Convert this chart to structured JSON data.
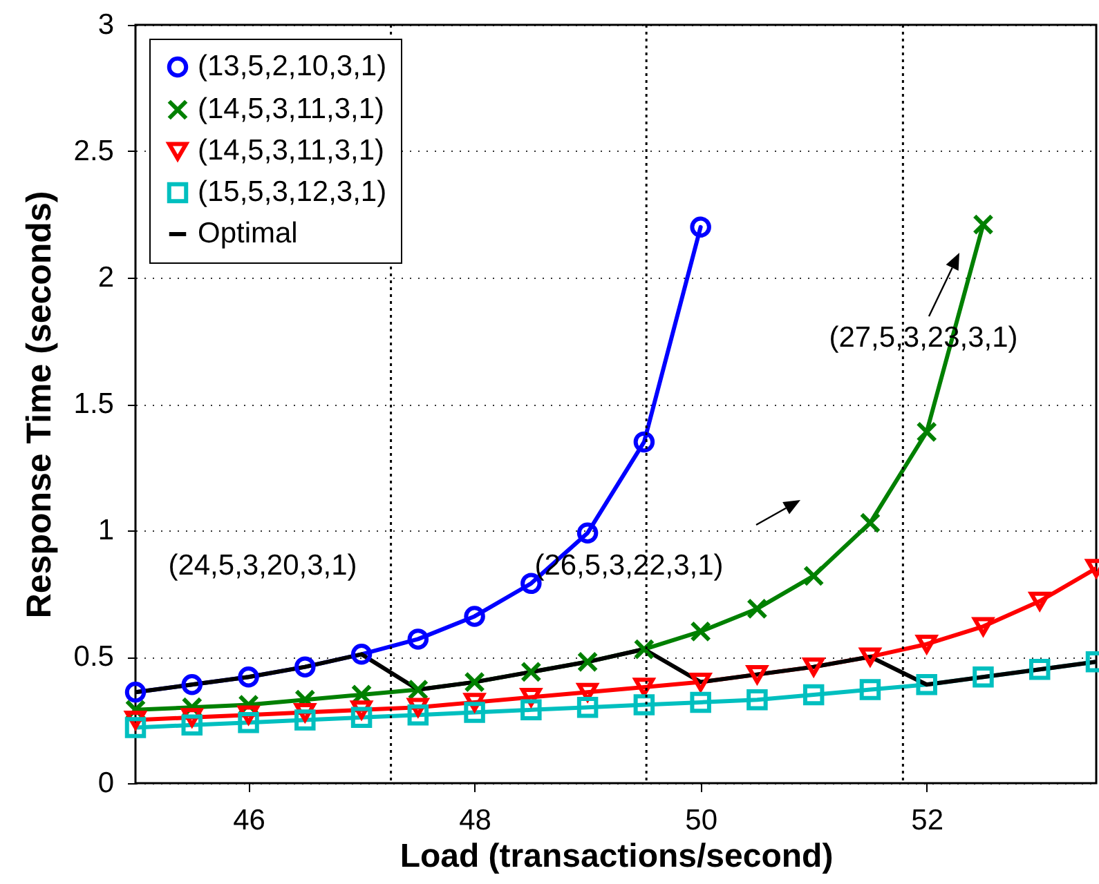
{
  "chart_data": {
    "type": "line",
    "xlabel": "Load (transactions/second)",
    "ylabel": "Response Time (seconds)",
    "xlim": [
      45,
      53.5
    ],
    "ylim": [
      0,
      3
    ],
    "xticks": [
      46,
      48,
      50,
      52
    ],
    "yticks": [
      0,
      0.5,
      1,
      1.5,
      2,
      2.5,
      3
    ],
    "grid": "y",
    "legend": "top left",
    "line_style": "solid",
    "series": [
      {
        "name": "(13,5,2,10,3,1)",
        "color": "#0000ff",
        "marker": "circle",
        "x": [
          45,
          45.5,
          46,
          46.5,
          47,
          47.5,
          48,
          48.5,
          49,
          49.5,
          50
        ],
        "values": [
          0.36,
          0.39,
          0.42,
          0.46,
          0.51,
          0.57,
          0.66,
          0.79,
          0.99,
          1.35,
          2.2
        ]
      },
      {
        "name": "(14,5,3,11,3,1)",
        "color": "#008000",
        "marker": "cross",
        "x": [
          45,
          45.5,
          46,
          46.5,
          47,
          47.5,
          48,
          48.5,
          49,
          49.5,
          50,
          50.5,
          51,
          51.5,
          52,
          52.5
        ],
        "values": [
          0.29,
          0.3,
          0.31,
          0.33,
          0.35,
          0.37,
          0.4,
          0.44,
          0.48,
          0.53,
          0.6,
          0.69,
          0.82,
          1.03,
          1.39,
          2.21
        ]
      },
      {
        "name": "(14,5,3,11,3,1)",
        "color": "#ff0000",
        "marker": "triangle",
        "x": [
          45,
          45.5,
          46,
          46.5,
          47,
          47.5,
          48,
          48.5,
          49,
          49.5,
          50,
          50.5,
          51,
          51.5,
          52,
          52.5,
          53,
          53.5
        ],
        "values": [
          0.25,
          0.26,
          0.27,
          0.28,
          0.29,
          0.3,
          0.32,
          0.34,
          0.36,
          0.38,
          0.4,
          0.43,
          0.46,
          0.5,
          0.55,
          0.62,
          0.72,
          0.85
        ]
      },
      {
        "name": "(15,5,3,12,3,1)",
        "color": "#00bfbf",
        "marker": "square",
        "x": [
          45,
          45.5,
          46,
          46.5,
          47,
          47.5,
          48,
          48.5,
          49,
          49.5,
          50,
          50.5,
          51,
          51.5,
          52,
          52.5,
          53,
          53.5
        ],
        "values": [
          0.22,
          0.23,
          0.24,
          0.25,
          0.26,
          0.27,
          0.28,
          0.29,
          0.3,
          0.31,
          0.32,
          0.33,
          0.35,
          0.37,
          0.39,
          0.42,
          0.45,
          0.48
        ]
      },
      {
        "name": "Optimal",
        "color": "#000000",
        "marker": "none",
        "x": [
          45,
          45.5,
          46,
          46.5,
          47,
          47.5,
          48,
          48.5,
          49,
          49.5,
          50,
          50.5,
          51,
          51.5,
          52,
          52.5,
          53,
          53.5
        ],
        "values": [
          0.36,
          0.39,
          0.42,
          0.46,
          0.51,
          0.37,
          0.4,
          0.44,
          0.48,
          0.53,
          0.4,
          0.43,
          0.46,
          0.5,
          0.39,
          0.42,
          0.45,
          0.48
        ]
      }
    ],
    "ref_lines": [
      {
        "axis": "x",
        "value": 47.26,
        "color": "#000000",
        "line_style": "dotted"
      },
      {
        "axis": "x",
        "value": 49.52,
        "color": "#000000",
        "line_style": "dotted"
      },
      {
        "axis": "x",
        "value": 51.79,
        "color": "#000000",
        "line_style": "dotted"
      }
    ],
    "annotations": [
      "(24,5,3,20,3,1)",
      "(26,5,3,22,3,1)",
      "(27,5,3,23,3,1)"
    ]
  }
}
